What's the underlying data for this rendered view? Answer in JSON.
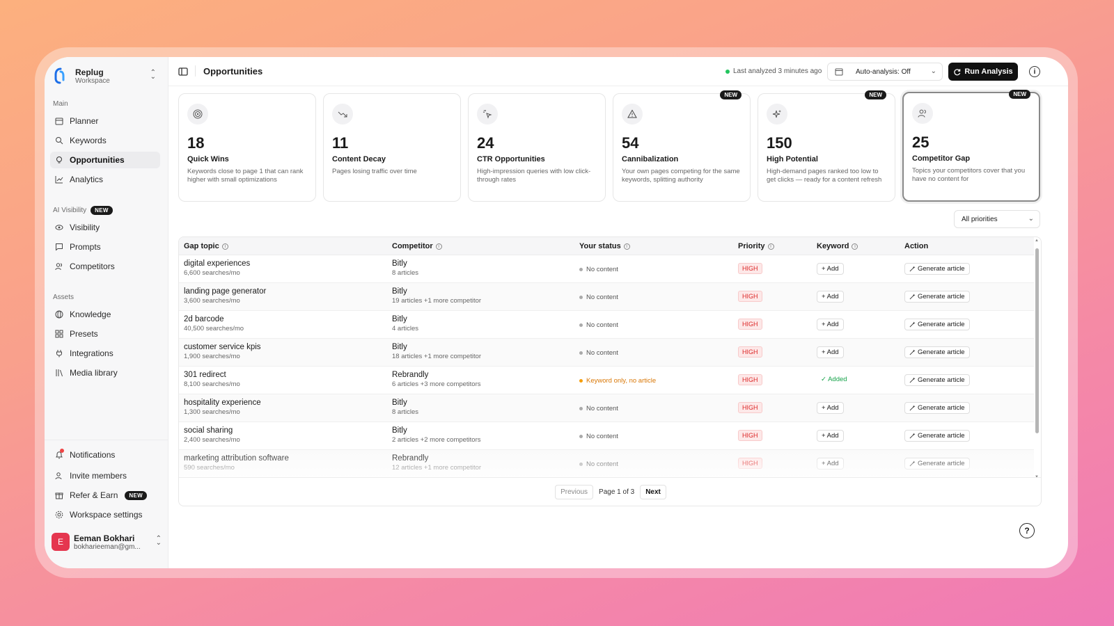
{
  "workspace": {
    "name": "Replug",
    "sub": "Workspace"
  },
  "sidebar": {
    "sections": {
      "main": "Main",
      "ai": "AI Visibility",
      "ai_badge": "NEW",
      "assets": "Assets"
    },
    "main_items": [
      {
        "label": "Planner",
        "icon": "calendar-icon"
      },
      {
        "label": "Keywords",
        "icon": "search-icon"
      },
      {
        "label": "Opportunities",
        "icon": "bulb-icon",
        "active": true
      },
      {
        "label": "Analytics",
        "icon": "chart-icon"
      }
    ],
    "ai_items": [
      {
        "label": "Visibility",
        "icon": "eye-icon"
      },
      {
        "label": "Prompts",
        "icon": "message-icon"
      },
      {
        "label": "Competitors",
        "icon": "users-icon"
      }
    ],
    "asset_items": [
      {
        "label": "Knowledge",
        "icon": "globe-icon"
      },
      {
        "label": "Presets",
        "icon": "grid-icon"
      },
      {
        "label": "Integrations",
        "icon": "plug-icon"
      },
      {
        "label": "Media library",
        "icon": "library-icon"
      }
    ],
    "bottom_items": [
      {
        "label": "Notifications",
        "icon": "bell-icon"
      },
      {
        "label": "Invite members",
        "icon": "user-plus-icon"
      },
      {
        "label": "Refer & Earn",
        "icon": "gift-icon",
        "badge": "NEW"
      },
      {
        "label": "Workspace settings",
        "icon": "gear-icon"
      }
    ],
    "user": {
      "initial": "E",
      "name": "Eeman Bokhari",
      "email": "bokharieeman@gm..."
    }
  },
  "header": {
    "title": "Opportunities",
    "last_analyzed": "Last analyzed 3 minutes ago",
    "auto_analysis": "Auto-analysis: Off",
    "run_button": "Run Analysis"
  },
  "cards": [
    {
      "num": "18",
      "title": "Quick Wins",
      "desc": "Keywords close to page 1 that can rank higher with small optimizations",
      "icon": "target-icon",
      "new": ""
    },
    {
      "num": "11",
      "title": "Content Decay",
      "desc": "Pages losing traffic over time",
      "icon": "trend-down-icon",
      "new": ""
    },
    {
      "num": "24",
      "title": "CTR Opportunities",
      "desc": "High-impression queries with low click-through rates",
      "icon": "pointer-click-icon",
      "new": ""
    },
    {
      "num": "54",
      "title": "Cannibalization",
      "desc": "Your own pages competing for the same keywords, splitting authority",
      "icon": "warning-icon",
      "new": "NEW"
    },
    {
      "num": "150",
      "title": "High Potential",
      "desc": "High-demand pages ranked too low to get clicks — ready for a content refresh",
      "icon": "sparkle-icon",
      "new": "NEW"
    },
    {
      "num": "25",
      "title": "Competitor Gap",
      "desc": "Topics your competitors cover that you have no content for",
      "icon": "users-icon",
      "new": "NEW"
    }
  ],
  "filter": {
    "priority": "All priorities"
  },
  "table": {
    "headers": [
      "Gap topic",
      "Competitor",
      "Your status",
      "Priority",
      "Keyword",
      "Action"
    ],
    "rows": [
      {
        "topic": "digital experiences",
        "volume": "6,600 searches/mo",
        "competitor": "Bitly",
        "articles": "8 articles",
        "status": "No content",
        "priority": "HIGH",
        "keyword": "+ Add",
        "action": "Generate article"
      },
      {
        "topic": "landing page generator",
        "volume": "3,600 searches/mo",
        "competitor": "Bitly",
        "articles": "19 articles  +1 more competitor",
        "status": "No content",
        "priority": "HIGH",
        "keyword": "+ Add",
        "action": "Generate article"
      },
      {
        "topic": "2d barcode",
        "volume": "40,500 searches/mo",
        "competitor": "Bitly",
        "articles": "4 articles",
        "status": "No content",
        "priority": "HIGH",
        "keyword": "+ Add",
        "action": "Generate article"
      },
      {
        "topic": "customer service kpis",
        "volume": "1,900 searches/mo",
        "competitor": "Bitly",
        "articles": "18 articles  +1 more competitor",
        "status": "No content",
        "priority": "HIGH",
        "keyword": "+ Add",
        "action": "Generate article"
      },
      {
        "topic": "301 redirect",
        "volume": "8,100 searches/mo",
        "competitor": "Rebrandly",
        "articles": "6 articles  +3 more competitors",
        "status": "Keyword only, no article",
        "priority": "HIGH",
        "keyword": "✓  Added",
        "action": "Generate article"
      },
      {
        "topic": "hospitality experience",
        "volume": "1,300 searches/mo",
        "competitor": "Bitly",
        "articles": "8 articles",
        "status": "No content",
        "priority": "HIGH",
        "keyword": "+ Add",
        "action": "Generate article"
      },
      {
        "topic": "social sharing",
        "volume": "2,400 searches/mo",
        "competitor": "Bitly",
        "articles": "2 articles  +2 more competitors",
        "status": "No content",
        "priority": "HIGH",
        "keyword": "+ Add",
        "action": "Generate article"
      },
      {
        "topic": "marketing attribution software",
        "volume": "590 searches/mo",
        "competitor": "Rebrandly",
        "articles": "12 articles  +1 more competitor",
        "status": "No content",
        "priority": "HIGH",
        "keyword": "+ Add",
        "action": "Generate article"
      }
    ]
  },
  "pagination": {
    "previous": "Previous",
    "page": "Page 1 of 3",
    "next": "Next"
  },
  "help": "?"
}
